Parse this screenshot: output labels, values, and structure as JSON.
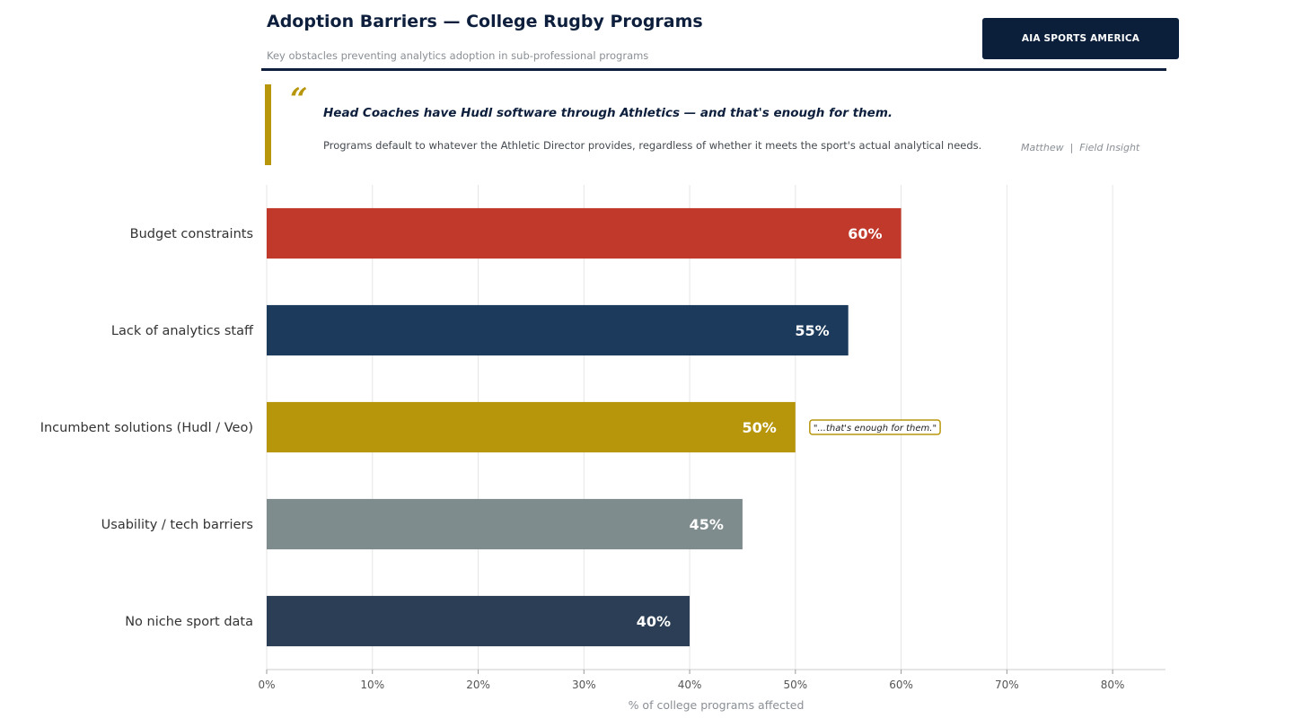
{
  "header": {
    "title": "Adoption Barriers — College Rugby Programs",
    "subtitle": "Key obstacles preventing analytics adoption in sub-professional programs",
    "badge": "AIA SPORTS AMERICA"
  },
  "quote": {
    "mark": "“",
    "headline": "Head Coaches have Hudl software through Athletics — and that's enough for them.",
    "body": "Programs default to whatever the Athletic Director provides, regardless of whether it meets the sport's actual analytical needs.",
    "attribution": "Matthew  |  Field Insight"
  },
  "colors": {
    "navy": "#0d1f3c",
    "gold": "#b8960c",
    "red": "#c0392b",
    "grid": "#e6e6e6"
  },
  "chart_data": {
    "type": "bar",
    "orientation": "horizontal",
    "categories": [
      "Budget constraints",
      "Lack of analytics staff",
      "Incumbent solutions (Hudl / Veo)",
      "Usability / tech barriers",
      "No niche sport data"
    ],
    "values": [
      60,
      55,
      50,
      45,
      40
    ],
    "value_labels": [
      "60%",
      "55%",
      "50%",
      "45%",
      "40%"
    ],
    "bar_colors": [
      "#c0392b",
      "#1b3a5c",
      "#b8960c",
      "#7f8c8d",
      "#2c3e55"
    ],
    "xlabel": "% of college programs affected",
    "xlim": [
      0,
      85
    ],
    "xticks": [
      0,
      10,
      20,
      30,
      40,
      50,
      60,
      70,
      80
    ],
    "xtick_labels": [
      "0%",
      "10%",
      "20%",
      "30%",
      "40%",
      "50%",
      "60%",
      "70%",
      "80%"
    ],
    "grid": true,
    "annotation": {
      "category": "Incumbent solutions (Hudl / Veo)",
      "text": "\"...that's enough for them.\""
    }
  }
}
